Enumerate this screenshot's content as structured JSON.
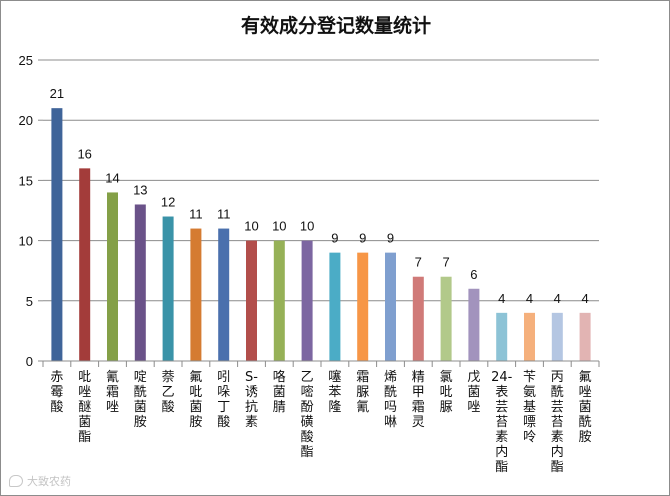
{
  "chart_data": {
    "type": "bar",
    "title": "有效成分登记数量统计",
    "xlabel": "",
    "ylabel": "",
    "ylim": [
      0,
      25
    ],
    "yticks": [
      "0",
      "5",
      "10",
      "15",
      "20",
      "25"
    ],
    "grid": true,
    "legend": "none",
    "categories": [
      "赤霉酸",
      "吡唑醚菌酯",
      "氰霜唑",
      "啶酰菌胺",
      "萘乙酸",
      "氟吡菌胺",
      "吲哚丁酸",
      "S-诱抗素",
      "咯菌腈",
      "乙嘧酚磺酸酯",
      "噻苯隆",
      "霜脲氰",
      "烯酰吗啉",
      "精甲霜灵",
      "氯吡脲",
      "戊菌唑",
      "24-表芸苔素内酯",
      "苄氨基嘌呤",
      "丙酰芸苔素内酯",
      "氟唑菌酰胺"
    ],
    "values": [
      21,
      16,
      14,
      13,
      12,
      11,
      11,
      10,
      10,
      10,
      9,
      9,
      9,
      7,
      7,
      6,
      4,
      4,
      4,
      4
    ],
    "colors": [
      "#3f6499",
      "#a33c3a",
      "#84a047",
      "#6a5289",
      "#3a93a8",
      "#d57b31",
      "#4a70ad",
      "#b24e4b",
      "#96b157",
      "#7c66a1",
      "#4bacc6",
      "#f79646",
      "#7f9fcf",
      "#d07a78",
      "#b2c98a",
      "#a293bd",
      "#8dc3d6",
      "#f5b07c",
      "#b4c6e2",
      "#e2b4b3"
    ]
  },
  "watermark": {
    "text": "大致农药"
  }
}
